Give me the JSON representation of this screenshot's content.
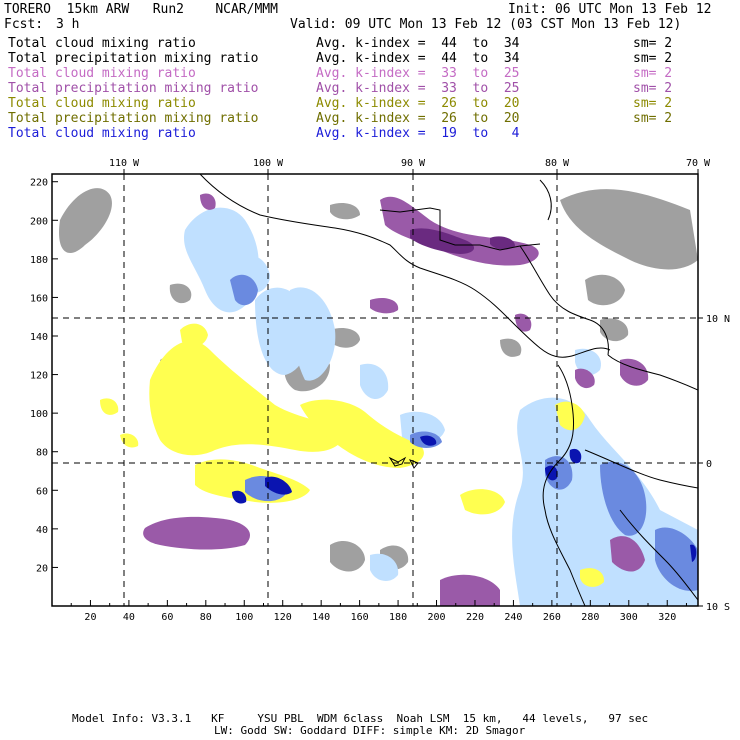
{
  "header": {
    "model_line": "TORERO  15km ARW   Run2    NCAR/MMM",
    "init": "Init: 06 UTC Mon 13 Feb 12",
    "fcst_label": "Fcst:",
    "fcst_value": "3 h",
    "valid": "Valid: 09 UTC Mon 13 Feb 12 (03 CST Mon 13 Feb 12)"
  },
  "legend": [
    {
      "field": "Total cloud mixing ratio",
      "kindex": "Avg. k-index =  44  to  34",
      "sm": "sm= 2",
      "color": "#000000"
    },
    {
      "field": "Total precipitation mixing ratio",
      "kindex": "Avg. k-index =  44  to  34",
      "sm": "sm= 2",
      "color": "#000000"
    },
    {
      "field": "Total cloud mixing ratio",
      "kindex": "Avg. k-index =  33  to  25",
      "sm": "sm= 2",
      "color": "#c46bc4"
    },
    {
      "field": "Total precipitation mixing ratio",
      "kindex": "Avg. k-index =  33  to  25",
      "sm": "sm= 2",
      "color": "#a050a8"
    },
    {
      "field": "Total cloud mixing ratio",
      "kindex": "Avg. k-index =  26  to  20",
      "sm": "sm= 2",
      "color": "#8c8a00"
    },
    {
      "field": "Total precipitation mixing ratio",
      "kindex": "Avg. k-index =  26  to  20",
      "sm": "sm= 2",
      "color": "#6f6e00"
    },
    {
      "field": "Total cloud mixing ratio",
      "kindex": "Avg. k-index =  19  to   4",
      "sm": "",
      "color": "#1c1cd8"
    }
  ],
  "map": {
    "top_lon_labels": [
      "110 W",
      "100 W",
      "90 W",
      "80 W",
      "70 W"
    ],
    "left_y_ticks": [
      "20",
      "40",
      "60",
      "80",
      "100",
      "120",
      "140",
      "160",
      "180",
      "200",
      "220"
    ],
    "bottom_x_ticks": [
      "20",
      "40",
      "60",
      "80",
      "100",
      "120",
      "140",
      "160",
      "180",
      "200",
      "220",
      "240",
      "260",
      "280",
      "300",
      "320"
    ],
    "right_lat_labels": [
      "10 N",
      "0",
      "10 S"
    ],
    "fill_colors": {
      "gray": "#a0a0a0",
      "purple": "#9a5aa8",
      "purple_dark": "#6a2a80",
      "yellow": "#ffff50",
      "light_blue": "#c0e0ff",
      "blue": "#6a8ae0",
      "dark_blue": "#0a14b0"
    }
  },
  "footer": {
    "line1": "Model Info: V3.3.1   KF     YSU PBL  WDM 6class  Noah LSM  15 km,   44 levels,   97 sec",
    "line2": "LW: Godd SW: Goddard DIFF: simple KM: 2D Smagor"
  }
}
